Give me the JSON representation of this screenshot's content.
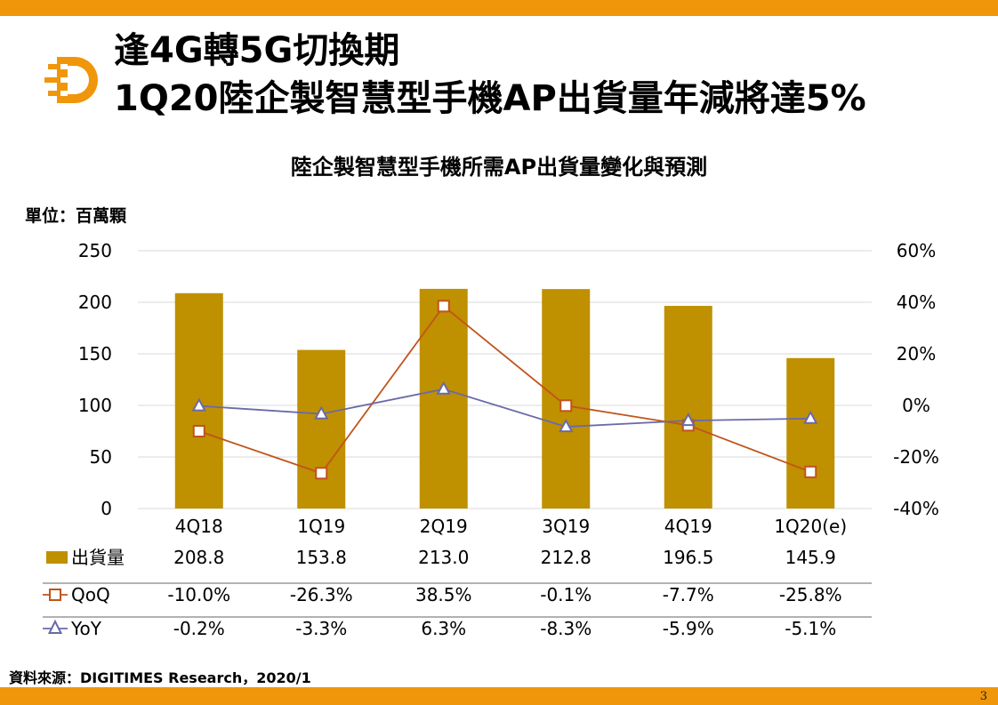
{
  "page": {
    "title_line1": "逢4G轉5G切換期",
    "title_line2": "1Q20陸企製智慧型手機AP出貨量年減將達5%",
    "unit": "單位：百萬顆",
    "source": "資料來源：DIGITIMES Research，2020/1",
    "page_number": "3"
  },
  "colors": {
    "accent": "#f0960a",
    "bar": "#bf9000",
    "qoq_line": "#c0541a",
    "yoy_line": "#6a6aa8",
    "grid": "#d9d9d9"
  },
  "chart_data": {
    "type": "bar",
    "title": "陸企製智慧型手機所需AP出貨量變化與預測",
    "categories": [
      "4Q18",
      "1Q19",
      "2Q19",
      "3Q19",
      "4Q19",
      "1Q20(e)"
    ],
    "left_axis": {
      "ylim": [
        0,
        250
      ],
      "ticks": [
        "0",
        "50",
        "100",
        "150",
        "200",
        "250"
      ]
    },
    "right_axis": {
      "ylim": [
        -40,
        60
      ],
      "ticks": [
        "-40%",
        "-20%",
        "0%",
        "20%",
        "40%",
        "60%"
      ]
    },
    "grid": true,
    "series": [
      {
        "name": "出貨量",
        "type": "bar",
        "axis": "left",
        "values": [
          208.8,
          153.8,
          213.0,
          212.8,
          196.5,
          145.9
        ],
        "labels": [
          "208.8",
          "153.8",
          "213.0",
          "212.8",
          "196.5",
          "145.9"
        ]
      },
      {
        "name": "QoQ",
        "type": "line",
        "axis": "right",
        "marker": "square",
        "values": [
          -10.0,
          -26.3,
          38.5,
          -0.1,
          -7.7,
          -25.8
        ],
        "labels": [
          "-10.0%",
          "-26.3%",
          "38.5%",
          "-0.1%",
          "-7.7%",
          "-25.8%"
        ]
      },
      {
        "name": "YoY",
        "type": "line",
        "axis": "right",
        "marker": "triangle",
        "values": [
          -0.2,
          -3.3,
          6.3,
          -8.3,
          -5.9,
          -5.1
        ],
        "labels": [
          "-0.2%",
          "-3.3%",
          "6.3%",
          "-8.3%",
          "-5.9%",
          "-5.1%"
        ]
      }
    ]
  }
}
